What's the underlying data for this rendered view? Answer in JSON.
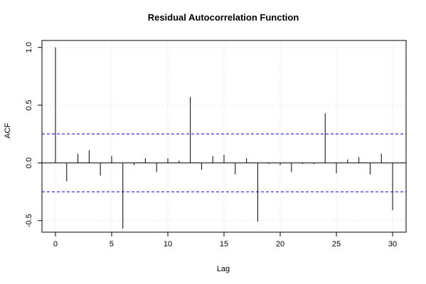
{
  "chart_data": {
    "type": "bar",
    "title": "Residual Autocorrelation Function",
    "xlabel": "Lag",
    "ylabel": "ACF",
    "xlim": [
      -1.2,
      31.2
    ],
    "ylim": [
      -0.6,
      1.06
    ],
    "x_ticks": [
      0,
      5,
      10,
      15,
      20,
      25,
      30
    ],
    "x_tick_labels": [
      "0",
      "5",
      "10",
      "15",
      "20",
      "25",
      "30"
    ],
    "y_ticks": [
      -0.5,
      0.0,
      0.5,
      1.0
    ],
    "y_tick_labels": [
      "-0.5",
      "0.0",
      "0.5",
      "1.0"
    ],
    "grid": true,
    "confidence_bounds": [
      0.25,
      -0.25
    ],
    "colors": {
      "spike": "#000000",
      "bound": "#0000ff",
      "grid": "#d3d3d3",
      "zero_line": "#000000"
    },
    "lags": [
      0,
      1,
      2,
      3,
      4,
      5,
      6,
      7,
      8,
      9,
      10,
      11,
      12,
      13,
      14,
      15,
      16,
      17,
      18,
      19,
      20,
      21,
      22,
      23,
      24,
      25,
      26,
      27,
      28,
      29,
      30
    ],
    "values": [
      1.0,
      -0.16,
      0.08,
      0.11,
      -0.11,
      0.06,
      -0.57,
      -0.02,
      0.04,
      -0.08,
      0.04,
      0.02,
      0.57,
      -0.06,
      0.06,
      0.07,
      -0.1,
      0.04,
      -0.51,
      -0.01,
      -0.02,
      -0.08,
      -0.01,
      -0.01,
      0.43,
      -0.09,
      0.03,
      0.05,
      -0.1,
      0.08,
      -0.41
    ]
  }
}
